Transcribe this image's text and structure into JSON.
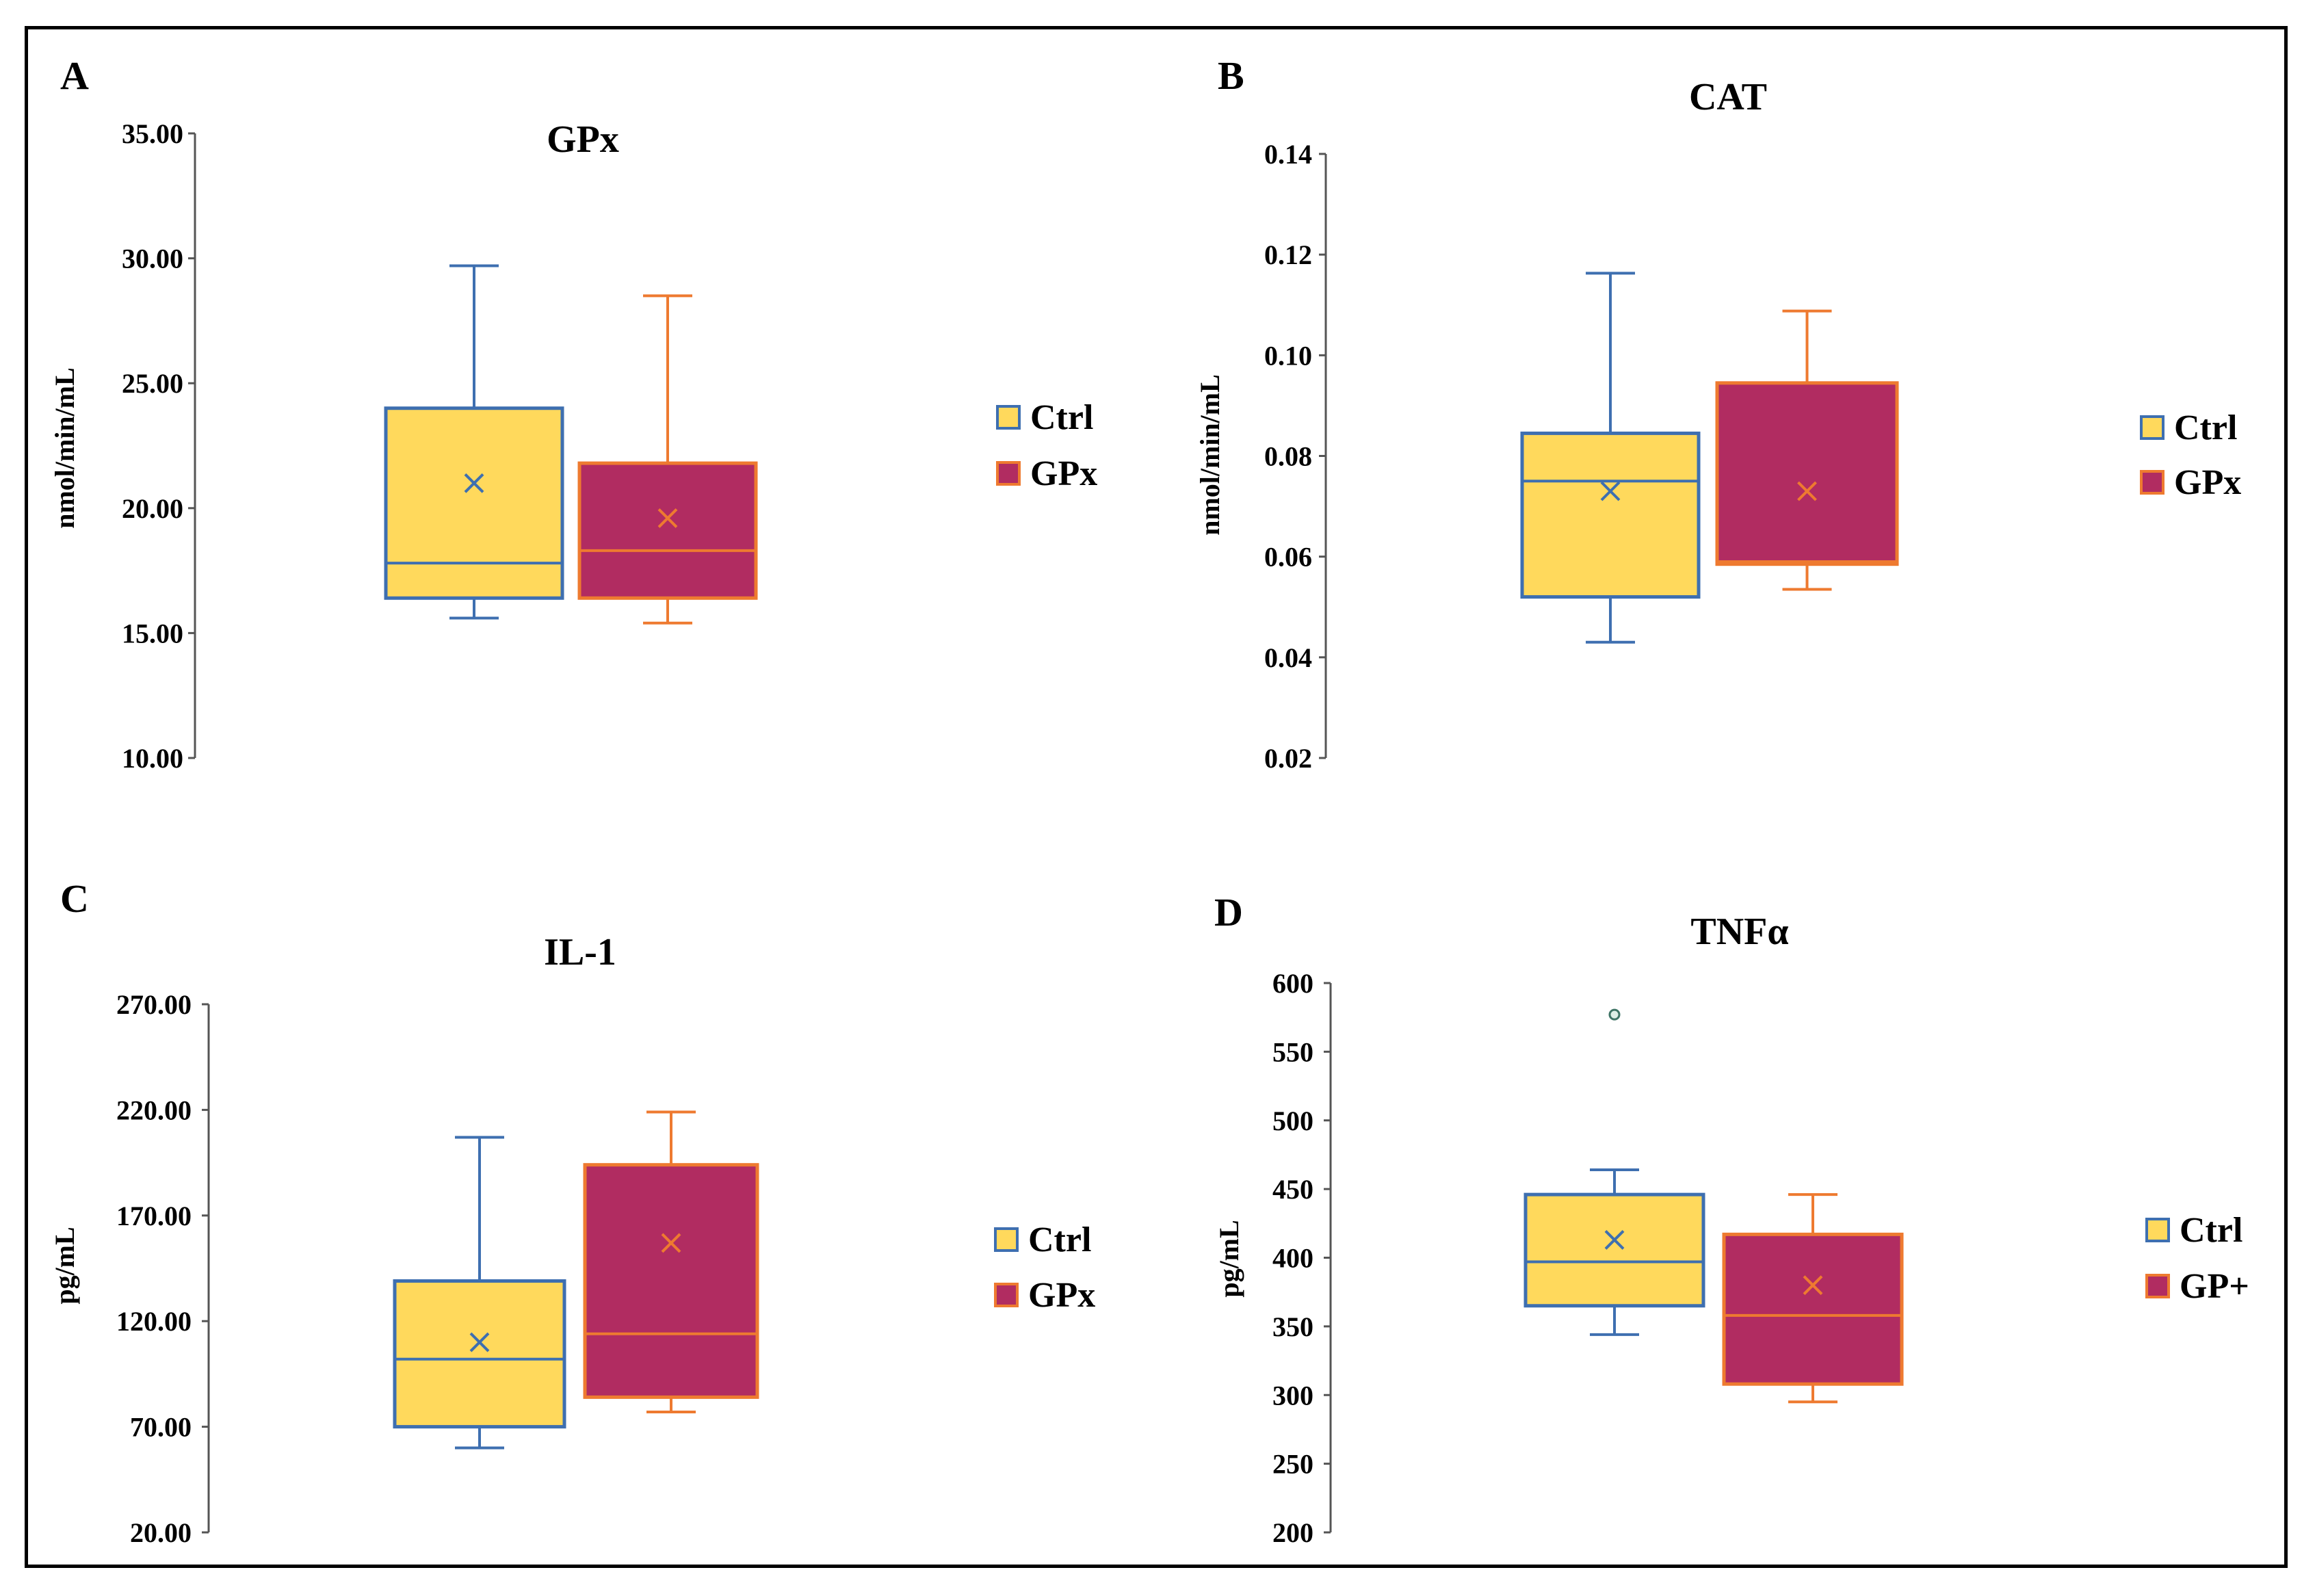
{
  "colors": {
    "ctrl_fill": "#FFD95C",
    "ctrl_stroke": "#3E6FB0",
    "treat_fill": "#B12C61",
    "treat_stroke": "#EE7A30",
    "outlier_fill": "#DDEEE6"
  },
  "chart_data": [
    {
      "type": "box",
      "panel_label": "A",
      "title": "GPx",
      "ylabel": "nmol/min/mL",
      "ylim": [
        10,
        35
      ],
      "yticks": [
        "10.00",
        "15.00",
        "20.00",
        "25.00",
        "30.00",
        "35.00"
      ],
      "tick_values": [
        10,
        15,
        20,
        25,
        30,
        35
      ],
      "legend": [
        "Ctrl",
        "GPx"
      ],
      "series": [
        {
          "name": "Ctrl",
          "min": 15.6,
          "q1": 16.4,
          "median": 17.8,
          "q3": 24.0,
          "max": 29.7,
          "mean": 21.0,
          "outliers": []
        },
        {
          "name": "GPx",
          "min": 15.4,
          "q1": 16.4,
          "median": 18.3,
          "q3": 21.8,
          "max": 28.5,
          "mean": 19.6,
          "outliers": []
        }
      ]
    },
    {
      "type": "box",
      "panel_label": "B",
      "title": "CAT",
      "ylabel": "nmol/min/mL",
      "ylim": [
        0.02,
        0.14
      ],
      "yticks": [
        "0.02",
        "0.04",
        "0.06",
        "0.08",
        "0.10",
        "0.12",
        "0.14"
      ],
      "tick_values": [
        0.02,
        0.04,
        0.06,
        0.08,
        0.1,
        0.12,
        0.14
      ],
      "legend": [
        "Ctrl",
        "GPx"
      ],
      "series": [
        {
          "name": "Ctrl",
          "min": 0.043,
          "q1": 0.052,
          "median": 0.075,
          "q3": 0.0845,
          "max": 0.1163,
          "mean": 0.073,
          "outliers": []
        },
        {
          "name": "GPx",
          "min": 0.0535,
          "q1": 0.0585,
          "median": 0.059,
          "q3": 0.0945,
          "max": 0.1088,
          "mean": 0.073,
          "outliers": []
        }
      ]
    },
    {
      "type": "box",
      "panel_label": "C",
      "title": "IL-1",
      "ylabel": "pg/mL",
      "ylim": [
        20,
        270
      ],
      "yticks": [
        "20.00",
        "70.00",
        "120.00",
        "170.00",
        "220.00",
        "270.00"
      ],
      "tick_values": [
        20,
        70,
        120,
        170,
        220,
        270
      ],
      "legend": [
        "Ctrl",
        "GPx"
      ],
      "series": [
        {
          "name": "Ctrl",
          "min": 60,
          "q1": 70,
          "median": 102,
          "q3": 139,
          "max": 207,
          "mean": 110,
          "outliers": []
        },
        {
          "name": "GPx",
          "min": 77,
          "q1": 84,
          "median": 114,
          "q3": 194,
          "max": 219,
          "mean": 157,
          "outliers": []
        }
      ]
    },
    {
      "type": "box",
      "panel_label": "D",
      "title": "TNFα",
      "ylabel": "pg/mL",
      "ylim": [
        200,
        600
      ],
      "yticks": [
        "200",
        "250",
        "300",
        "350",
        "400",
        "450",
        "500",
        "550",
        "600"
      ],
      "tick_values": [
        200,
        250,
        300,
        350,
        400,
        450,
        500,
        550,
        600
      ],
      "legend": [
        "Ctrl",
        "GP+"
      ],
      "series": [
        {
          "name": "Ctrl",
          "min": 344,
          "q1": 365,
          "median": 397,
          "q3": 446,
          "max": 464,
          "mean": 413,
          "outliers": [
            577
          ]
        },
        {
          "name": "GP+",
          "min": 295,
          "q1": 308,
          "median": 358,
          "q3": 417,
          "max": 446,
          "mean": 380,
          "outliers": []
        }
      ]
    }
  ]
}
